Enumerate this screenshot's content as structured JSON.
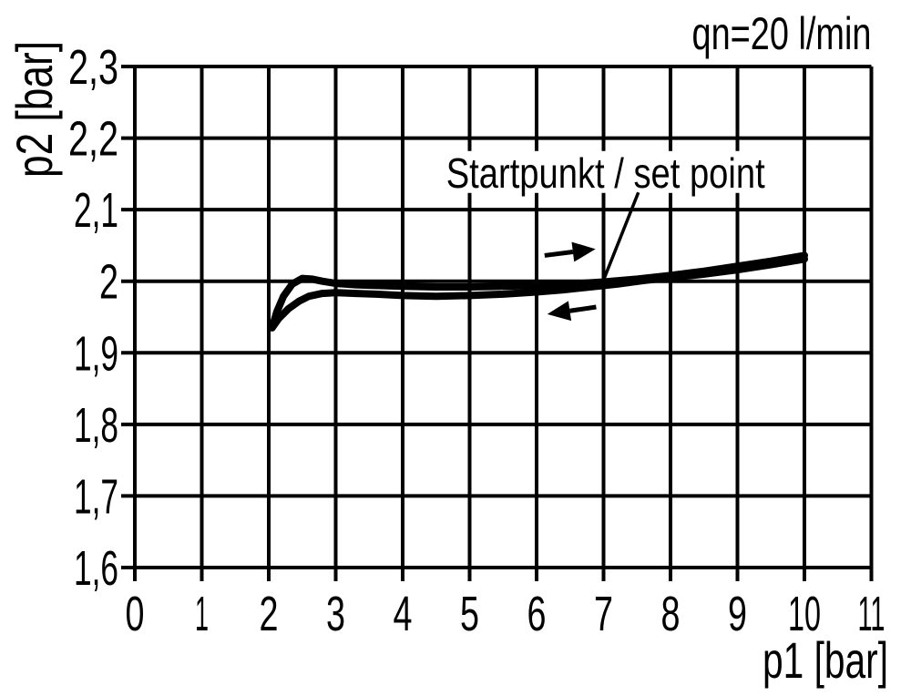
{
  "chart_data": {
    "type": "line",
    "title": "qn=20 l/min",
    "xlabel": "p1 [bar]",
    "ylabel": "p2 [bar]",
    "xlim": [
      0,
      11
    ],
    "ylim": [
      1.6,
      2.3
    ],
    "grid": true,
    "decimal_separator": ",",
    "x_ticks": [
      0,
      1,
      2,
      3,
      4,
      5,
      6,
      7,
      8,
      9,
      10,
      11
    ],
    "x_tick_labels": [
      "0",
      "1",
      "2",
      "3",
      "4",
      "5",
      "6",
      "7",
      "8",
      "9",
      "10",
      "11"
    ],
    "y_ticks": [
      2.3,
      2.2,
      2.1,
      2.0,
      1.9,
      1.8,
      1.7,
      1.6
    ],
    "y_tick_labels": [
      "2,3",
      "2,2",
      "2,1",
      "2",
      "1,9",
      "1,8",
      "1,7",
      "1,6"
    ],
    "series": [
      {
        "id": "upper-branch",
        "name": "upper branch (direction: p1 increasing, right arrow)",
        "points": [
          [
            2.05,
            1.935
          ],
          [
            2.12,
            1.957
          ],
          [
            2.22,
            1.979
          ],
          [
            2.35,
            1.996
          ],
          [
            2.5,
            2.004
          ],
          [
            2.65,
            2.003
          ],
          [
            2.8,
            2.0
          ],
          [
            3.0,
            1.997
          ],
          [
            3.3,
            1.995
          ],
          [
            3.6,
            1.994
          ],
          [
            4.0,
            1.993
          ],
          [
            4.5,
            1.992
          ],
          [
            5.0,
            1.992
          ],
          [
            5.5,
            1.993
          ],
          [
            6.0,
            1.994
          ],
          [
            6.5,
            1.996
          ],
          [
            7.0,
            1.999
          ],
          [
            7.5,
            2.003
          ],
          [
            8.0,
            2.008
          ],
          [
            8.5,
            2.014
          ],
          [
            9.0,
            2.021
          ],
          [
            9.5,
            2.028
          ],
          [
            10.0,
            2.036
          ]
        ]
      },
      {
        "id": "lower-branch",
        "name": "lower branch (direction: p1 decreasing, left arrow)",
        "points": [
          [
            2.05,
            1.935
          ],
          [
            2.15,
            1.948
          ],
          [
            2.3,
            1.962
          ],
          [
            2.45,
            1.972
          ],
          [
            2.6,
            1.979
          ],
          [
            2.8,
            1.983
          ],
          [
            3.0,
            1.984
          ],
          [
            3.3,
            1.983
          ],
          [
            3.6,
            1.982
          ],
          [
            4.0,
            1.98
          ],
          [
            4.5,
            1.979
          ],
          [
            5.0,
            1.98
          ],
          [
            5.5,
            1.982
          ],
          [
            6.0,
            1.985
          ],
          [
            6.4,
            1.988
          ],
          [
            6.8,
            1.992
          ],
          [
            7.2,
            1.996
          ],
          [
            7.6,
            2.001
          ],
          [
            8.0,
            2.005
          ],
          [
            8.5,
            2.01
          ],
          [
            9.0,
            2.016
          ],
          [
            9.5,
            2.023
          ],
          [
            10.0,
            2.031
          ]
        ]
      }
    ],
    "annotations": {
      "set_point": {
        "label": "Startpunkt / set point",
        "label_pos": {
          "x": 7.03,
          "y": 2.131
        },
        "leader_from": {
          "x": 7.52,
          "y": 2.124
        },
        "leader_to": {
          "x": 7.01,
          "y": 2.004
        }
      },
      "arrows": [
        {
          "name": "arrow-right",
          "from": {
            "x": 6.12,
            "y": 2.036
          },
          "to": {
            "x": 6.88,
            "y": 2.045
          }
        },
        {
          "name": "arrow-left",
          "from": {
            "x": 6.89,
            "y": 1.964
          },
          "to": {
            "x": 6.16,
            "y": 1.954
          }
        }
      ]
    },
    "legend": "none",
    "colors": {
      "ink": "#000000",
      "background": "#ffffff"
    }
  }
}
